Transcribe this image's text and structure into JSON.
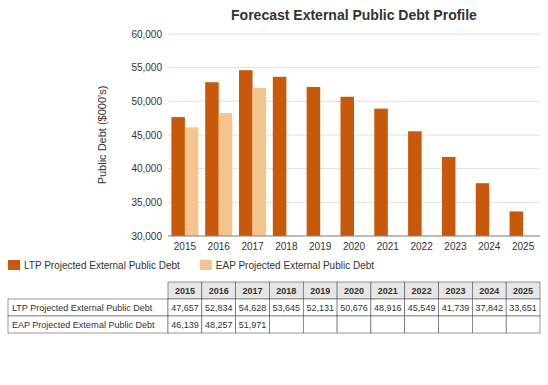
{
  "chart_data": {
    "type": "bar",
    "title": "Forecast External Public Debt Profile",
    "y_label": "Public Debt ($000's)",
    "categories": [
      "2015",
      "2016",
      "2017",
      "2018",
      "2019",
      "2020",
      "2021",
      "2022",
      "2023",
      "2024",
      "2025"
    ],
    "series": [
      {
        "name": "LTP Projected External Public Debt",
        "color": "#C8580A",
        "values": [
          47657,
          52834,
          54628,
          53645,
          52131,
          50676,
          48916,
          45549,
          41739,
          37842,
          33651
        ],
        "value_labels": [
          "47,657",
          "52,834",
          "54,628",
          "53,645",
          "52,131",
          "50,676",
          "48,916",
          "45,549",
          "41,739",
          "37,842",
          "33,651"
        ]
      },
      {
        "name": "EAP Projected External Public Debt",
        "color": "#F5C48C",
        "values": [
          46139,
          48257,
          51971,
          null,
          null,
          null,
          null,
          null,
          null,
          null,
          null
        ],
        "value_labels": [
          "46,139",
          "48,257",
          "51,971",
          null,
          null,
          null,
          null,
          null,
          null,
          null,
          null
        ]
      }
    ],
    "ylim": [
      30000,
      60000
    ],
    "yticks": [
      {
        "value": 30000,
        "label": "30,000"
      },
      {
        "value": 35000,
        "label": "35,000"
      },
      {
        "value": 40000,
        "label": "40,000"
      },
      {
        "value": 45000,
        "label": "45,000"
      },
      {
        "value": 50000,
        "label": "50,000"
      },
      {
        "value": 55000,
        "label": "55,000"
      },
      {
        "value": 60000,
        "label": "60,000"
      }
    ],
    "grid": true,
    "legend": "lower left"
  }
}
